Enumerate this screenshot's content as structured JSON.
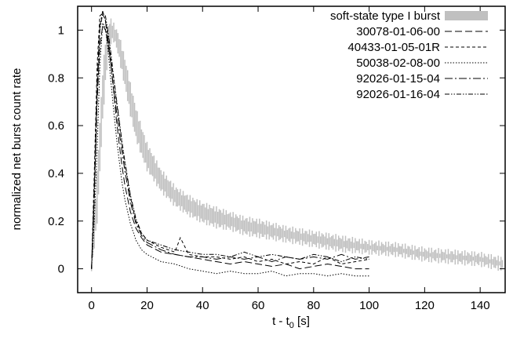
{
  "chart_data": {
    "type": "line",
    "title": "",
    "xlabel_main": "t - t",
    "xlabel_sub": "0",
    "xlabel_tail": " [s]",
    "ylabel": "normalized net burst count rate",
    "xlim": [
      -5,
      149
    ],
    "ylim": [
      -0.1,
      1.1
    ],
    "xticks": [
      0,
      20,
      40,
      60,
      80,
      100,
      120,
      140
    ],
    "yticks": [
      0,
      0.2,
      0.4,
      0.6,
      0.8,
      1
    ],
    "ytick_labels": [
      "0",
      "0.2",
      "0.4",
      "0.6",
      "0.8",
      "1"
    ],
    "legend_position": "top-right",
    "band": {
      "name": "soft-state type I burst",
      "color": "#c0c0c0",
      "x": [
        0,
        2,
        4,
        5,
        6,
        7,
        8,
        9,
        10,
        12,
        14,
        16,
        18,
        20,
        25,
        30,
        35,
        40,
        45,
        50,
        55,
        60,
        70,
        80,
        90,
        100,
        110,
        120,
        130,
        140,
        148
      ],
      "upper": [
        0.02,
        0.4,
        0.82,
        0.95,
        1.02,
        1.04,
        1.02,
        1.0,
        0.97,
        0.88,
        0.77,
        0.67,
        0.59,
        0.52,
        0.41,
        0.34,
        0.3,
        0.27,
        0.25,
        0.23,
        0.21,
        0.2,
        0.17,
        0.15,
        0.13,
        0.11,
        0.1,
        0.08,
        0.07,
        0.06,
        0.04
      ],
      "lower": [
        -0.01,
        0.2,
        0.62,
        0.78,
        0.9,
        0.95,
        0.96,
        0.93,
        0.88,
        0.77,
        0.65,
        0.55,
        0.48,
        0.42,
        0.33,
        0.27,
        0.23,
        0.2,
        0.18,
        0.17,
        0.15,
        0.14,
        0.12,
        0.1,
        0.08,
        0.07,
        0.06,
        0.04,
        0.03,
        0.02,
        0.0
      ]
    },
    "series": [
      {
        "name": "30078-01-06-00",
        "dash": "9,4",
        "x": [
          0,
          1,
          2,
          3,
          4,
          5,
          6,
          7,
          8,
          9,
          10,
          11,
          12,
          14,
          16,
          18,
          20,
          25,
          30,
          35,
          40,
          45,
          50,
          55,
          60,
          65,
          70,
          75,
          80,
          85,
          90,
          95,
          100
        ],
        "y": [
          0.0,
          0.3,
          0.7,
          0.93,
          1.02,
          1.0,
          0.94,
          0.85,
          0.74,
          0.62,
          0.52,
          0.43,
          0.35,
          0.24,
          0.17,
          0.13,
          0.1,
          0.07,
          0.06,
          0.05,
          0.04,
          0.03,
          0.02,
          0.03,
          0.02,
          0.01,
          0.02,
          0.0,
          0.01,
          0.02,
          0.01,
          0.0,
          0.0
        ]
      },
      {
        "name": "40433-01-05-01R",
        "dash": "4,3",
        "x": [
          0,
          1,
          2,
          3,
          4,
          5,
          6,
          7,
          8,
          9,
          10,
          11,
          12,
          14,
          16,
          18,
          20,
          25,
          30,
          32,
          35,
          40,
          45,
          50,
          55,
          60,
          65,
          70,
          75,
          80,
          85,
          90,
          95,
          100
        ],
        "y": [
          0.0,
          0.4,
          0.85,
          1.06,
          1.07,
          1.04,
          0.97,
          0.88,
          0.79,
          0.7,
          0.61,
          0.52,
          0.44,
          0.3,
          0.2,
          0.15,
          0.12,
          0.09,
          0.07,
          0.13,
          0.06,
          0.05,
          0.05,
          0.04,
          0.05,
          0.03,
          0.04,
          0.02,
          0.03,
          0.02,
          0.05,
          0.02,
          0.03,
          0.04
        ]
      },
      {
        "name": "50038-02-08-00",
        "dash": "1.5,2",
        "x": [
          0,
          1,
          2,
          3,
          4,
          5,
          6,
          7,
          8,
          9,
          10,
          11,
          12,
          14,
          16,
          18,
          20,
          25,
          30,
          35,
          40,
          45,
          50,
          55,
          60,
          65,
          70,
          75,
          80,
          85,
          90,
          95,
          100
        ],
        "y": [
          0.0,
          0.2,
          0.5,
          0.85,
          1.03,
          1.01,
          0.91,
          0.78,
          0.66,
          0.55,
          0.45,
          0.36,
          0.29,
          0.19,
          0.12,
          0.08,
          0.06,
          0.03,
          0.02,
          0.0,
          -0.01,
          -0.02,
          -0.01,
          -0.02,
          -0.02,
          -0.01,
          -0.03,
          -0.02,
          -0.02,
          -0.03,
          -0.02,
          -0.03,
          -0.03
        ]
      },
      {
        "name": "92026-01-15-04",
        "dash": "10,3,2,3",
        "x": [
          0,
          1,
          2,
          3,
          4,
          5,
          6,
          7,
          8,
          9,
          10,
          11,
          12,
          14,
          16,
          18,
          20,
          25,
          30,
          35,
          40,
          45,
          50,
          55,
          60,
          65,
          70,
          75,
          80,
          85,
          90,
          95,
          100
        ],
        "y": [
          0.0,
          0.35,
          0.78,
          1.02,
          1.08,
          1.04,
          0.95,
          0.85,
          0.75,
          0.66,
          0.57,
          0.49,
          0.41,
          0.28,
          0.19,
          0.14,
          0.11,
          0.08,
          0.06,
          0.05,
          0.05,
          0.04,
          0.05,
          0.04,
          0.05,
          0.03,
          0.05,
          0.04,
          0.05,
          0.04,
          0.06,
          0.04,
          0.05
        ]
      },
      {
        "name": "92026-01-16-04",
        "dash": "6,2,1.5,2,1.5,2",
        "x": [
          0,
          1,
          2,
          3,
          4,
          5,
          6,
          7,
          8,
          9,
          10,
          11,
          12,
          14,
          16,
          18,
          20,
          25,
          30,
          35,
          40,
          45,
          50,
          55,
          60,
          65,
          70,
          75,
          80,
          85,
          90,
          95,
          100
        ],
        "y": [
          0.0,
          0.3,
          0.72,
          1.0,
          1.07,
          1.06,
          0.99,
          0.9,
          0.8,
          0.71,
          0.62,
          0.53,
          0.45,
          0.31,
          0.21,
          0.15,
          0.12,
          0.1,
          0.08,
          0.07,
          0.06,
          0.06,
          0.05,
          0.07,
          0.05,
          0.06,
          0.05,
          0.04,
          0.06,
          0.05,
          0.03,
          0.05,
          0.04
        ]
      }
    ]
  }
}
